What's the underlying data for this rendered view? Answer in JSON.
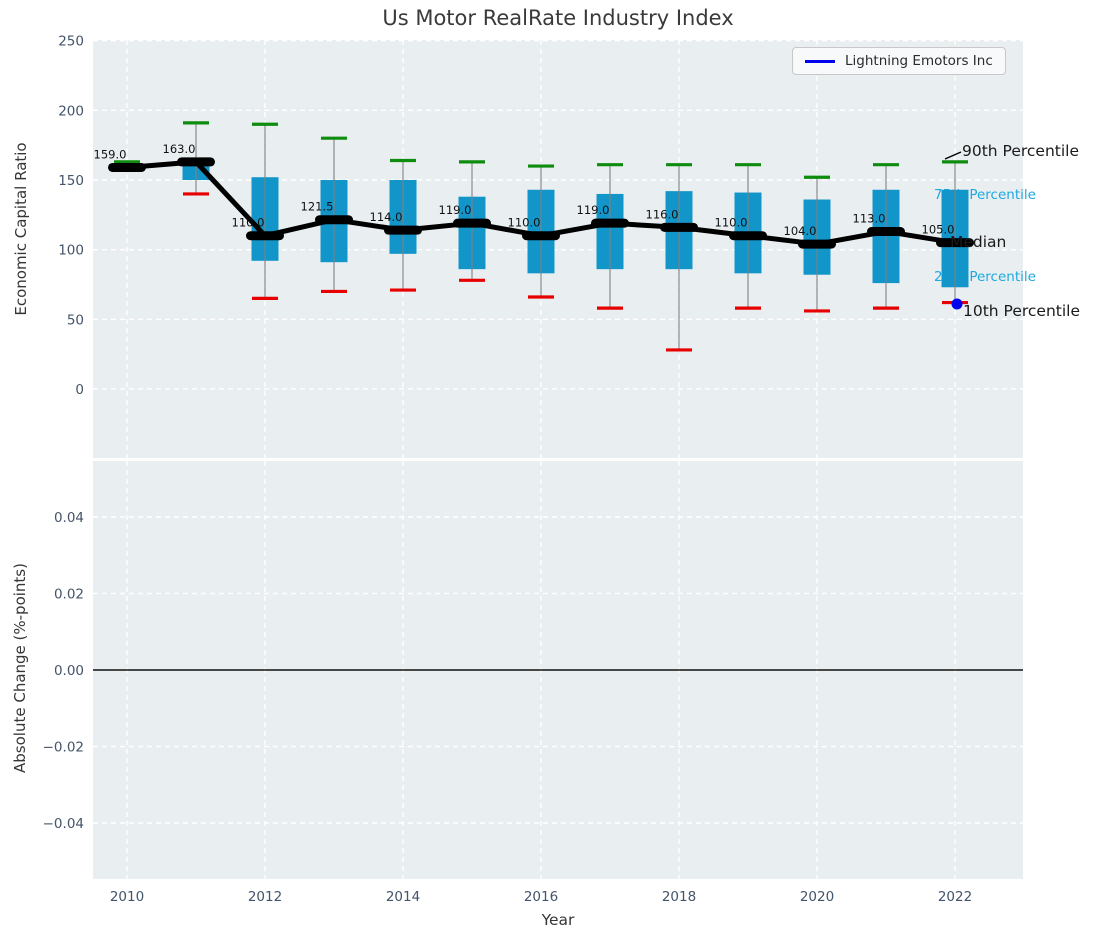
{
  "title": "Us Motor RealRate Industry Index",
  "legend": {
    "label": "Lightning Emotors Inc",
    "line_color": "#0000ee"
  },
  "annotations": {
    "p90": {
      "label": "90th Percentile",
      "color": "#1a1a1a"
    },
    "p75": {
      "label": "75th Percentile",
      "color": "#1ea9e0"
    },
    "median": {
      "label": "Median",
      "color": "#1a1a1a"
    },
    "p25": {
      "label": "25th Percentile",
      "color": "#1ea9e0"
    },
    "p10": {
      "label": "10th Percentile",
      "color": "#1a1a1a"
    }
  },
  "colors": {
    "plot_bg": "#e9eef1",
    "grid": "#ffffff",
    "box_fill": "#1295c9",
    "whisker": "#808080",
    "cap_high": "#0e8c0e",
    "cap_low": "#e80000",
    "median_line": "#000000",
    "tick_label": "#44546a",
    "company_dot": "#0000f0",
    "zero_line": "#111111"
  },
  "chart_data": {
    "type": "boxplot_with_median_line",
    "title": "Us Motor RealRate Industry Index",
    "xlabel": "Year",
    "xticks": [
      2010,
      2012,
      2014,
      2016,
      2018,
      2020,
      2022
    ],
    "x": [
      2010,
      2011,
      2012,
      2013,
      2014,
      2015,
      2016,
      2017,
      2018,
      2019,
      2020,
      2021,
      2022
    ],
    "median": [
      159,
      163,
      110,
      121.5,
      114,
      119,
      110,
      119,
      116,
      110,
      104,
      113,
      105
    ],
    "median_labels": [
      "159.0",
      "163.0",
      "110.0",
      "121.5",
      "114.0",
      "119.0",
      "110.0",
      "119.0",
      "116.0",
      "110.0",
      "104.0",
      "113.0",
      "105.0"
    ],
    "q1": [
      158,
      150,
      92,
      91,
      97,
      86,
      83,
      86,
      86,
      83,
      82,
      76,
      73
    ],
    "q3": [
      160,
      164,
      152,
      150,
      150,
      138,
      143,
      140,
      142,
      141,
      136,
      143,
      143
    ],
    "p10": [
      158,
      140,
      65,
      70,
      71,
      78,
      66,
      58,
      28,
      58,
      56,
      58,
      62
    ],
    "p90": [
      163,
      191,
      190,
      180,
      164,
      163,
      160,
      161,
      161,
      161,
      152,
      161,
      163
    ],
    "company_series": {
      "name": "Lightning Emotors Inc",
      "points": [
        {
          "x": 2022,
          "y": 61
        }
      ]
    },
    "top_axis": {
      "ylabel": "Economic Capital Ratio",
      "yticks": [
        250,
        200,
        150,
        100,
        50,
        0
      ],
      "ylim": [
        -50,
        251
      ],
      "grid": true
    },
    "bottom_axis": {
      "ylabel": "Absolute Change (%-points)",
      "yticks": [
        0.04,
        0.02,
        0,
        -0.02,
        -0.04
      ],
      "ytick_labels": [
        "0.04",
        "0.02",
        "0.00",
        "−0.02",
        "−0.04"
      ],
      "ylim": [
        -0.055,
        0.055
      ],
      "zero_line": 0,
      "grid": true
    }
  }
}
